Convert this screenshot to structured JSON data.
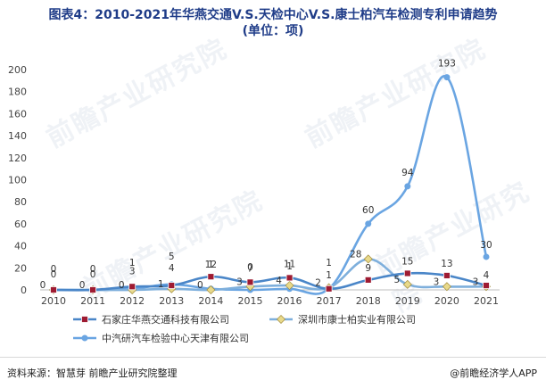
{
  "title_line1": "图表4：2010-2021年华燕交通V.S.天检中心V.S.康士柏汽车检测专利申请趋势",
  "title_line2": "(单位：项)",
  "source": "资料来源：智慧芽 前瞻产业研究院整理",
  "credit": "@前瞻经济学人APP",
  "watermark": "前瞻产业研究院",
  "chart_data": {
    "type": "line",
    "title": "图表4：2010-2021年华燕交通V.S.天检中心V.S.康士柏汽车检测专利申请趋势 (单位：项)",
    "xlabel": "",
    "ylabel": "",
    "categories": [
      "2010",
      "2011",
      "2012",
      "2013",
      "2014",
      "2015",
      "2016",
      "2017",
      "2018",
      "2019",
      "2020",
      "2021"
    ],
    "ylim": [
      0,
      200
    ],
    "yticks": [
      0,
      20,
      40,
      60,
      80,
      100,
      120,
      140,
      160,
      180,
      200
    ],
    "grid": false,
    "legend_position": "bottom",
    "series": [
      {
        "name": "石家庄华燕交通科技有限公司",
        "values": [
          0,
          0,
          3,
          4,
          12,
          7,
          11,
          1,
          9,
          15,
          13,
          4
        ],
        "labels": [
          "0",
          "0",
          "3",
          "4",
          "12",
          "7",
          "11",
          "1",
          "9",
          "15",
          "13",
          "4"
        ],
        "color": "#4a86c8",
        "marker": "square",
        "marker_color": "#9e1b32"
      },
      {
        "name": "深圳市康士柏实业有限公司",
        "values": [
          0,
          0,
          0,
          1,
          0,
          3,
          4,
          2,
          28,
          5,
          3,
          3
        ],
        "labels": [
          "0",
          "0",
          "0",
          "1",
          "0",
          "3",
          "4",
          "2",
          "28",
          "5",
          "3",
          "3"
        ],
        "color": "#7eafdc",
        "marker": "diamond",
        "marker_color": "#e8d98a"
      },
      {
        "name": "中汽研汽车检验中心天津有限公司",
        "values": [
          0,
          0,
          1,
          5,
          1,
          0,
          1,
          1,
          60,
          94,
          193,
          30
        ],
        "labels": [
          "0",
          "0",
          "1",
          "5",
          "1",
          "0",
          "1",
          "1",
          "60",
          "94",
          "193",
          "30"
        ],
        "color": "#6aa5e2",
        "marker": "circle",
        "marker_color": "#6aa5e2"
      }
    ]
  }
}
